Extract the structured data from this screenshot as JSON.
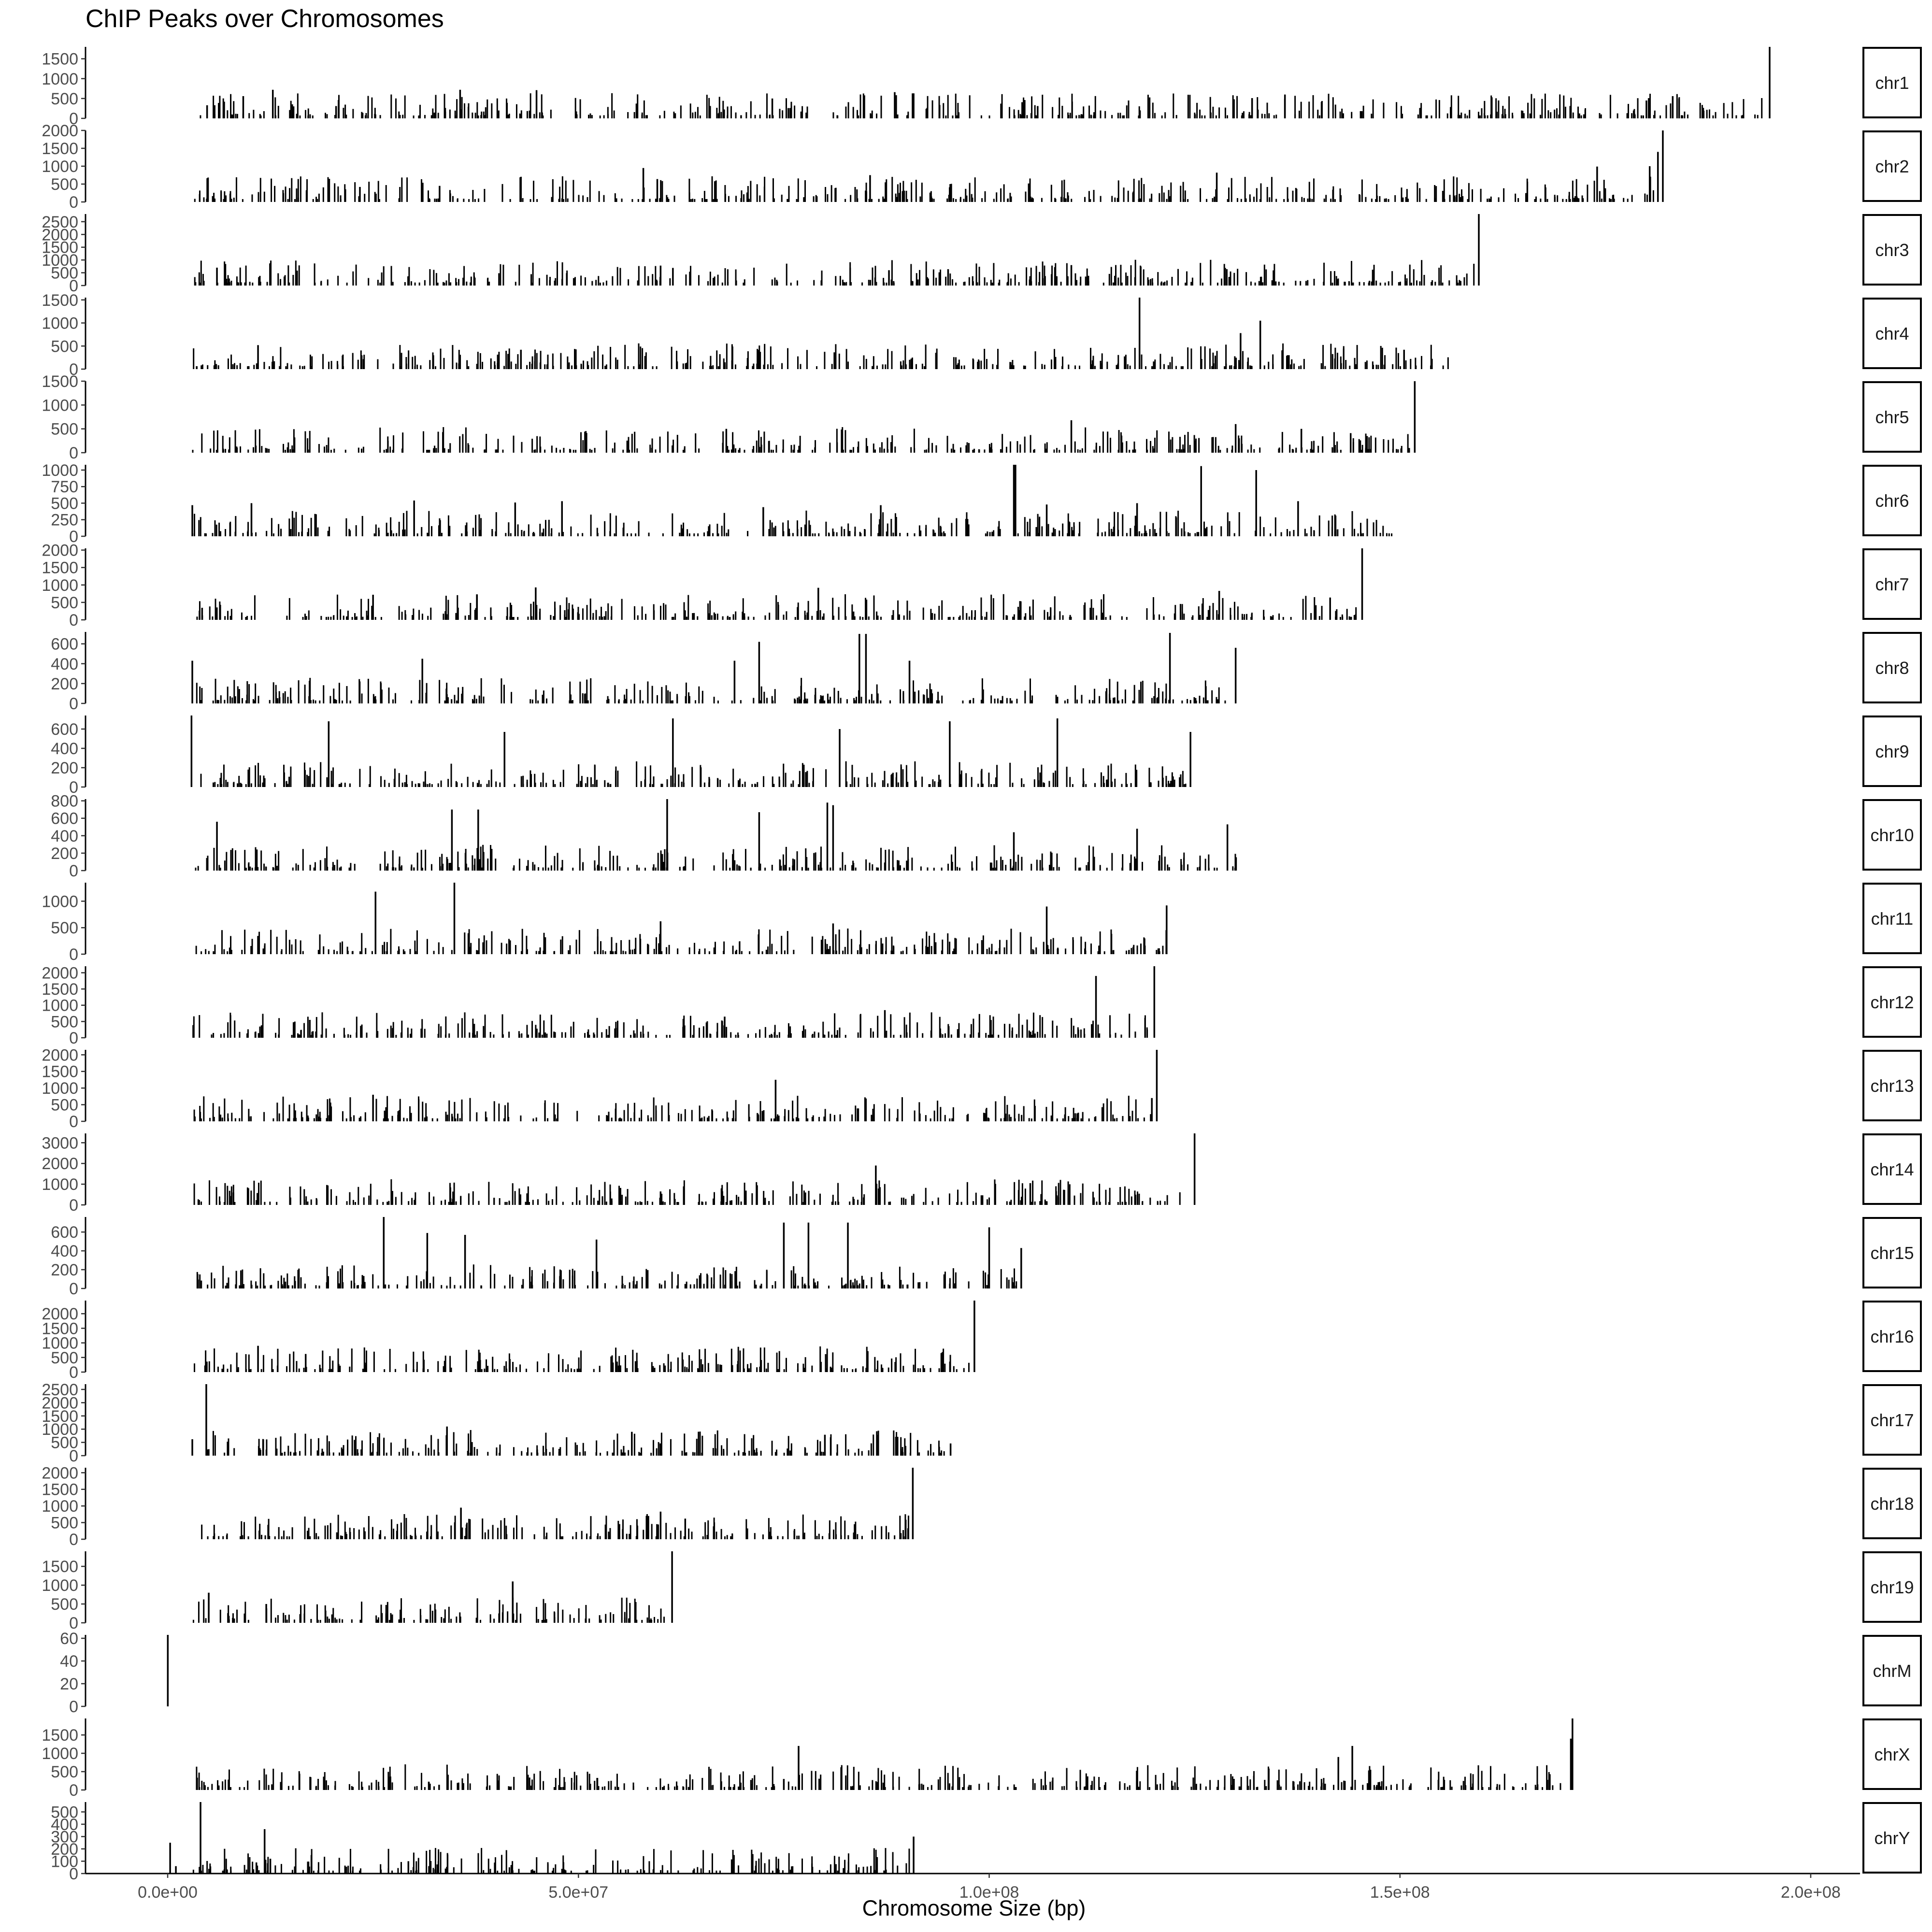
{
  "chart_data": {
    "type": "bar",
    "title": "ChIP Peaks over Chromosomes",
    "xlabel": "Chromosome Size (bp)",
    "ylabel": "",
    "xlim": [
      -10000000,
      206000000
    ],
    "x_ticks": [
      0,
      50000000,
      100000000,
      150000000,
      200000000
    ],
    "x_tick_labels": [
      "0.0e+00",
      "5.0e+07",
      "1.0e+08",
      "1.5e+08",
      "2.0e+08"
    ],
    "facet_layout": "rows, strip labels on the right",
    "grid": false,
    "legend": "none",
    "bar_color": "#000000",
    "panels": [
      {
        "label": "chr1",
        "length": 195000000,
        "ymax": 1800,
        "y_ticks": [
          0,
          500,
          1000,
          1500
        ],
        "peaks": [
          [
            195000000,
            1800
          ],
          [
            4800000,
            330
          ],
          [
            9200000,
            560
          ],
          [
            12800000,
            720
          ],
          [
            20500000,
            310
          ],
          [
            35600000,
            720
          ],
          [
            44900000,
            710
          ],
          [
            73600000,
            500
          ],
          [
            84800000,
            580
          ],
          [
            88500000,
            660
          ],
          [
            105900000,
            310
          ],
          [
            132000000,
            510
          ],
          [
            136000000,
            600
          ],
          [
            180000000,
            450
          ],
          [
            183200000,
            560
          ]
        ]
      },
      {
        "label": "chr2",
        "length": 182000000,
        "ymax": 2000,
        "y_ticks": [
          0,
          500,
          1000,
          1500,
          2000
        ],
        "peaks": [
          [
            182000000,
            2000
          ],
          [
            23400000,
            420
          ],
          [
            33100000,
            450
          ],
          [
            57900000,
            950
          ],
          [
            59600000,
            640
          ],
          [
            85500000,
            750
          ],
          [
            127700000,
            820
          ],
          [
            174000000,
            990
          ],
          [
            180400000,
            1000
          ],
          [
            181400000,
            1400
          ]
        ]
      },
      {
        "label": "chr3",
        "length": 159600000,
        "ymax": 2800,
        "y_ticks": [
          0,
          500,
          1000,
          1500,
          2000,
          2500
        ],
        "peaks": [
          [
            159600000,
            2800
          ],
          [
            6000000,
            700
          ],
          [
            60000000,
            780
          ],
          [
            61500000,
            690
          ],
          [
            87800000,
            600
          ],
          [
            95000000,
            640
          ],
          [
            108000000,
            720
          ],
          [
            110000000,
            800
          ]
        ]
      },
      {
        "label": "chr4",
        "length": 156500000,
        "ymax": 1550,
        "y_ticks": [
          0,
          500,
          1000,
          1500
        ],
        "peaks": [
          [
            118300000,
            1550
          ],
          [
            11000000,
            520
          ],
          [
            43000000,
            420
          ],
          [
            130600000,
            780
          ],
          [
            133000000,
            1050
          ],
          [
            150500000,
            420
          ]
        ]
      },
      {
        "label": "chr5",
        "length": 151800000,
        "ymax": 1500,
        "y_ticks": [
          0,
          500,
          1000,
          1500
        ],
        "peaks": [
          [
            151800000,
            1500
          ],
          [
            68000000,
            500
          ],
          [
            110000000,
            680
          ],
          [
            130000000,
            600
          ],
          [
            138000000,
            500
          ],
          [
            144000000,
            410
          ]
        ]
      },
      {
        "label": "chr6",
        "length": 149600000,
        "ymax": 1080,
        "y_ticks": [
          0,
          250,
          500,
          750,
          1000
        ],
        "peaks": [
          [
            103000000,
            1080
          ],
          [
            3000000,
            470
          ],
          [
            10200000,
            500
          ],
          [
            30000000,
            540
          ],
          [
            42300000,
            510
          ],
          [
            48000000,
            530
          ],
          [
            72500000,
            440
          ],
          [
            86800000,
            470
          ],
          [
            103200000,
            1080
          ],
          [
            107000000,
            480
          ],
          [
            118000000,
            500
          ],
          [
            125800000,
            1060
          ],
          [
            132500000,
            1000
          ],
          [
            137600000,
            530
          ]
        ]
      },
      {
        "label": "chr7",
        "length": 145400000,
        "ymax": 2050,
        "y_ticks": [
          0,
          500,
          1000,
          1500,
          2000
        ],
        "peaks": [
          [
            145400000,
            2050
          ],
          [
            25000000,
            720
          ],
          [
            44800000,
            930
          ],
          [
            79200000,
            920
          ],
          [
            128000000,
            830
          ],
          [
            141500000,
            640
          ]
        ]
      },
      {
        "label": "chr8",
        "length": 129400000,
        "ymax": 720,
        "y_ticks": [
          0,
          200,
          400,
          600
        ],
        "peaks": [
          [
            3000000,
            430
          ],
          [
            31000000,
            450
          ],
          [
            69000000,
            430
          ],
          [
            72000000,
            620
          ],
          [
            84200000,
            700
          ],
          [
            85000000,
            700
          ],
          [
            90300000,
            430
          ],
          [
            122000000,
            710
          ],
          [
            130000000,
            560
          ]
        ]
      },
      {
        "label": "chr9",
        "length": 124600000,
        "ymax": 740,
        "y_ticks": [
          0,
          200,
          400,
          600
        ],
        "peaks": [
          [
            2900000,
            740
          ],
          [
            19600000,
            680
          ],
          [
            41000000,
            570
          ],
          [
            61500000,
            710
          ],
          [
            81800000,
            600
          ],
          [
            95200000,
            680
          ],
          [
            108300000,
            710
          ],
          [
            124500000,
            570
          ]
        ]
      },
      {
        "label": "chr10",
        "length": 130700000,
        "ymax": 820,
        "y_ticks": [
          0,
          200,
          400,
          600,
          800
        ],
        "peaks": [
          [
            6000000,
            560
          ],
          [
            34600000,
            700
          ],
          [
            37800000,
            700
          ],
          [
            60800000,
            820
          ],
          [
            72000000,
            670
          ],
          [
            80300000,
            780
          ],
          [
            81000000,
            750
          ],
          [
            103000000,
            440
          ],
          [
            118000000,
            480
          ],
          [
            129000000,
            530
          ]
        ]
      },
      {
        "label": "chr11",
        "length": 122100000,
        "ymax": 1350,
        "y_ticks": [
          0,
          500,
          1000
        ],
        "peaks": [
          [
            25300000,
            1180
          ],
          [
            34900000,
            1350
          ],
          [
            60000000,
            620
          ],
          [
            81000000,
            580
          ],
          [
            107000000,
            900
          ],
          [
            121600000,
            920
          ]
        ]
      },
      {
        "label": "chr12",
        "length": 120100000,
        "ymax": 2200,
        "y_ticks": [
          0,
          500,
          1000,
          1500,
          2000
        ],
        "peaks": [
          [
            120100000,
            2200
          ],
          [
            113000000,
            1900
          ],
          [
            17300000,
            550
          ],
          [
            67800000,
            650
          ],
          [
            87300000,
            850
          ]
        ]
      },
      {
        "label": "chr13",
        "length": 120400000,
        "ymax": 2150,
        "y_ticks": [
          0,
          500,
          1000,
          1500,
          2000
        ],
        "peaks": [
          [
            120400000,
            2150
          ],
          [
            74000000,
            1250
          ],
          [
            25000000,
            800
          ],
          [
            119800000,
            700
          ]
        ]
      },
      {
        "label": "chr14",
        "length": 125000000,
        "ymax": 3450,
        "y_ticks": [
          0,
          1000,
          2000,
          3000
        ],
        "peaks": [
          [
            125000000,
            3450
          ],
          [
            86200000,
            1900
          ],
          [
            105000000,
            1050
          ],
          [
            60000000,
            650
          ],
          [
            8000000,
            600
          ]
        ]
      },
      {
        "label": "chr15",
        "length": 103900000,
        "ymax": 760,
        "y_ticks": [
          0,
          200,
          400,
          600
        ],
        "peaks": [
          [
            26300000,
            760
          ],
          [
            31600000,
            590
          ],
          [
            36200000,
            570
          ],
          [
            52200000,
            520
          ],
          [
            75000000,
            700
          ],
          [
            78000000,
            700
          ],
          [
            82800000,
            700
          ],
          [
            100000000,
            650
          ],
          [
            103900000,
            430
          ]
        ]
      },
      {
        "label": "chr16",
        "length": 98200000,
        "ymax": 2450,
        "y_ticks": [
          0,
          500,
          1000,
          1500,
          2000
        ],
        "peaks": [
          [
            98200000,
            2450
          ],
          [
            11000000,
            900
          ],
          [
            16800000,
            620
          ]
        ]
      },
      {
        "label": "chr17",
        "length": 95300000,
        "ymax": 2700,
        "y_ticks": [
          0,
          500,
          1000,
          1500,
          2000,
          2500
        ],
        "peaks": [
          [
            4700000,
            2700
          ],
          [
            3000000,
            620
          ],
          [
            34000000,
            1100
          ],
          [
            56500000,
            900
          ],
          [
            80000000,
            790
          ],
          [
            95300000,
            460
          ]
        ]
      },
      {
        "label": "chr18",
        "length": 90700000,
        "ymax": 2150,
        "y_ticks": [
          0,
          500,
          1000,
          1500,
          2000
        ],
        "peaks": [
          [
            90700000,
            2150
          ],
          [
            35700000,
            950
          ],
          [
            60000000,
            830
          ],
          [
            63000000,
            620
          ]
        ]
      },
      {
        "label": "chr19",
        "length": 61400000,
        "ymax": 1900,
        "y_ticks": [
          0,
          500,
          1000,
          1500
        ],
        "peaks": [
          [
            61400000,
            1900
          ],
          [
            42000000,
            1100
          ],
          [
            5000000,
            800
          ],
          [
            12000000,
            500
          ]
        ]
      },
      {
        "label": "chrM",
        "length": 16300,
        "ymax": 63,
        "y_ticks": [
          0,
          20,
          40,
          60
        ],
        "peaks": [
          [
            16300,
            63
          ]
        ]
      },
      {
        "label": "chrX",
        "length": 171000000,
        "ymax": 1950,
        "y_ticks": [
          0,
          500,
          1000,
          1500
        ],
        "peaks": [
          [
            171000000,
            1950
          ],
          [
            170800000,
            1400
          ],
          [
            76800000,
            1200
          ],
          [
            144200000,
            1200
          ],
          [
            142500000,
            900
          ],
          [
            75000000,
            300
          ]
        ]
      },
      {
        "label": "chrY",
        "length": 90800000,
        "ymax": 580,
        "y_ticks": [
          0,
          100,
          200,
          300,
          400,
          500
        ],
        "peaks": [
          [
            4000000,
            580
          ],
          [
            11800000,
            360
          ],
          [
            300000,
            250
          ],
          [
            17500000,
            150
          ],
          [
            29300000,
            100
          ],
          [
            90800000,
            300
          ],
          [
            12500000,
            120
          ],
          [
            10800000,
            90
          ],
          [
            1000000,
            60
          ]
        ]
      }
    ]
  }
}
